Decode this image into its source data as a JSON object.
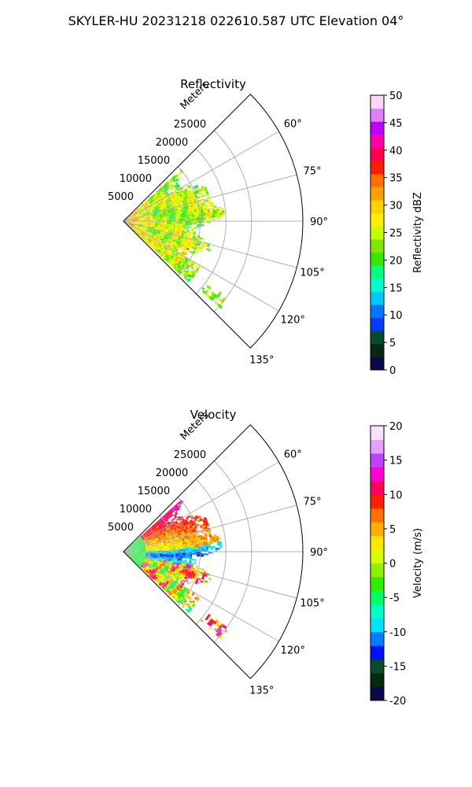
{
  "suptitle": "SKYLER-HU  20231218  022610.587 UTC Elevation 04°",
  "chart_data": [
    {
      "type": "heatmap",
      "projection": "polar-sector",
      "title": "Reflectivity",
      "radial_label": "Meters",
      "radial_ticks": [
        5000,
        10000,
        15000,
        20000,
        25000
      ],
      "radial_range": [
        0,
        35000
      ],
      "grid": true,
      "angle_ticks": [
        "60°",
        "75°",
        "90°",
        "105°",
        "120°",
        "135°"
      ],
      "angle_range_deg": [
        45,
        135
      ],
      "colorbar": {
        "label": "Reflectivity dBZ",
        "min": 0,
        "max": 50,
        "ticks": [
          0,
          5,
          10,
          15,
          20,
          25,
          30,
          35,
          40,
          45,
          50
        ],
        "colors": [
          "#0a0a4a",
          "#062a10",
          "#0a4a2a",
          "#003cff",
          "#0077ff",
          "#00c8ff",
          "#00ffd0",
          "#00ff80",
          "#39e600",
          "#7fe600",
          "#c8ff00",
          "#ffef00",
          "#ffd000",
          "#ffa000",
          "#ff7000",
          "#ff2000",
          "#ff0050",
          "#ff00aa",
          "#c000ff",
          "#e080ff",
          "#f8d8ff"
        ]
      },
      "field": {
        "r_max": 25500,
        "angle_min": 48,
        "angle_max": 133,
        "dominant_value": 24,
        "notes": "mostly 20-30 dBZ, red 35-40 dBZ near radar and lower-left sector"
      }
    },
    {
      "type": "heatmap",
      "projection": "polar-sector",
      "title": "Velocity",
      "radial_label": "Meters",
      "radial_ticks": [
        5000,
        10000,
        15000,
        20000,
        25000
      ],
      "radial_range": [
        0,
        35000
      ],
      "grid": true,
      "angle_ticks": [
        "60°",
        "75°",
        "90°",
        "105°",
        "120°",
        "135°"
      ],
      "angle_range_deg": [
        45,
        135
      ],
      "colorbar": {
        "label": "Velocity (m/s)",
        "min": -20,
        "max": 20,
        "ticks": [
          -20,
          -15,
          -10,
          -5,
          0,
          5,
          10,
          15,
          20
        ],
        "colors": [
          "#0a0a4a",
          "#062a10",
          "#0a4a2a",
          "#0010ff",
          "#0080ff",
          "#00e0ff",
          "#00ffc0",
          "#00ff60",
          "#30ee00",
          "#90f000",
          "#d8ff00",
          "#ffe800",
          "#ffb000",
          "#ff7000",
          "#ff2000",
          "#ff0060",
          "#ff00d0",
          "#c040ff",
          "#e8a0ff",
          "#f8e0ff"
        ]
      },
      "field": {
        "r_max": 25500,
        "angle_min": 48,
        "angle_max": 133,
        "notes": "inbound (cyan/green) along 90-110°, outbound (red/magenta) on outer edges"
      }
    }
  ]
}
